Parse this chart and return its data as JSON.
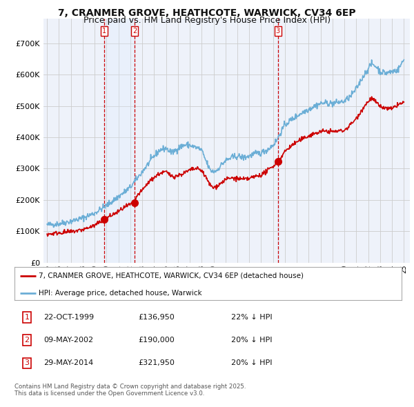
{
  "title": "7, CRANMER GROVE, HEATHCOTE, WARWICK, CV34 6EP",
  "subtitle": "Price paid vs. HM Land Registry's House Price Index (HPI)",
  "title_fontsize": 10,
  "subtitle_fontsize": 9,
  "ylim": [
    0,
    780000
  ],
  "yticks": [
    0,
    100000,
    200000,
    300000,
    400000,
    500000,
    600000,
    700000
  ],
  "ytick_labels": [
    "£0",
    "£100K",
    "£200K",
    "£300K",
    "£400K",
    "£500K",
    "£600K",
    "£700K"
  ],
  "xtick_years": [
    "95",
    "96",
    "97",
    "98",
    "99",
    "00",
    "01",
    "02",
    "03",
    "04",
    "05",
    "06",
    "07",
    "08",
    "09",
    "10",
    "11",
    "12",
    "13",
    "14",
    "15",
    "16",
    "17",
    "18",
    "19",
    "20",
    "21",
    "22",
    "23",
    "24",
    "25"
  ],
  "xtick_positions": [
    1995,
    1996,
    1997,
    1998,
    1999,
    2000,
    2001,
    2002,
    2003,
    2004,
    2005,
    2006,
    2007,
    2008,
    2009,
    2010,
    2011,
    2012,
    2013,
    2014,
    2015,
    2016,
    2017,
    2018,
    2019,
    2020,
    2021,
    2022,
    2023,
    2024,
    2025
  ],
  "hpi_color": "#6baed6",
  "price_color": "#cc0000",
  "vline_color": "#cc0000",
  "shade_color": "#ddeeff",
  "grid_color": "#cccccc",
  "background_color": "#eef2fa",
  "sale_dates": [
    1999.81,
    2002.36,
    2014.41
  ],
  "sale_prices": [
    136950,
    190000,
    321950
  ],
  "sale_labels": [
    "1",
    "2",
    "3"
  ],
  "footer_line1": "Contains HM Land Registry data © Crown copyright and database right 2025.",
  "footer_line2": "This data is licensed under the Open Government Licence v3.0.",
  "legend_line1": "7, CRANMER GROVE, HEATHCOTE, WARWICK, CV34 6EP (detached house)",
  "legend_line2": "HPI: Average price, detached house, Warwick",
  "table_rows": [
    [
      "1",
      "22-OCT-1999",
      "£136,950",
      "22% ↓ HPI"
    ],
    [
      "2",
      "09-MAY-2002",
      "£190,000",
      "20% ↓ HPI"
    ],
    [
      "3",
      "29-MAY-2014",
      "£321,950",
      "20% ↓ HPI"
    ]
  ]
}
